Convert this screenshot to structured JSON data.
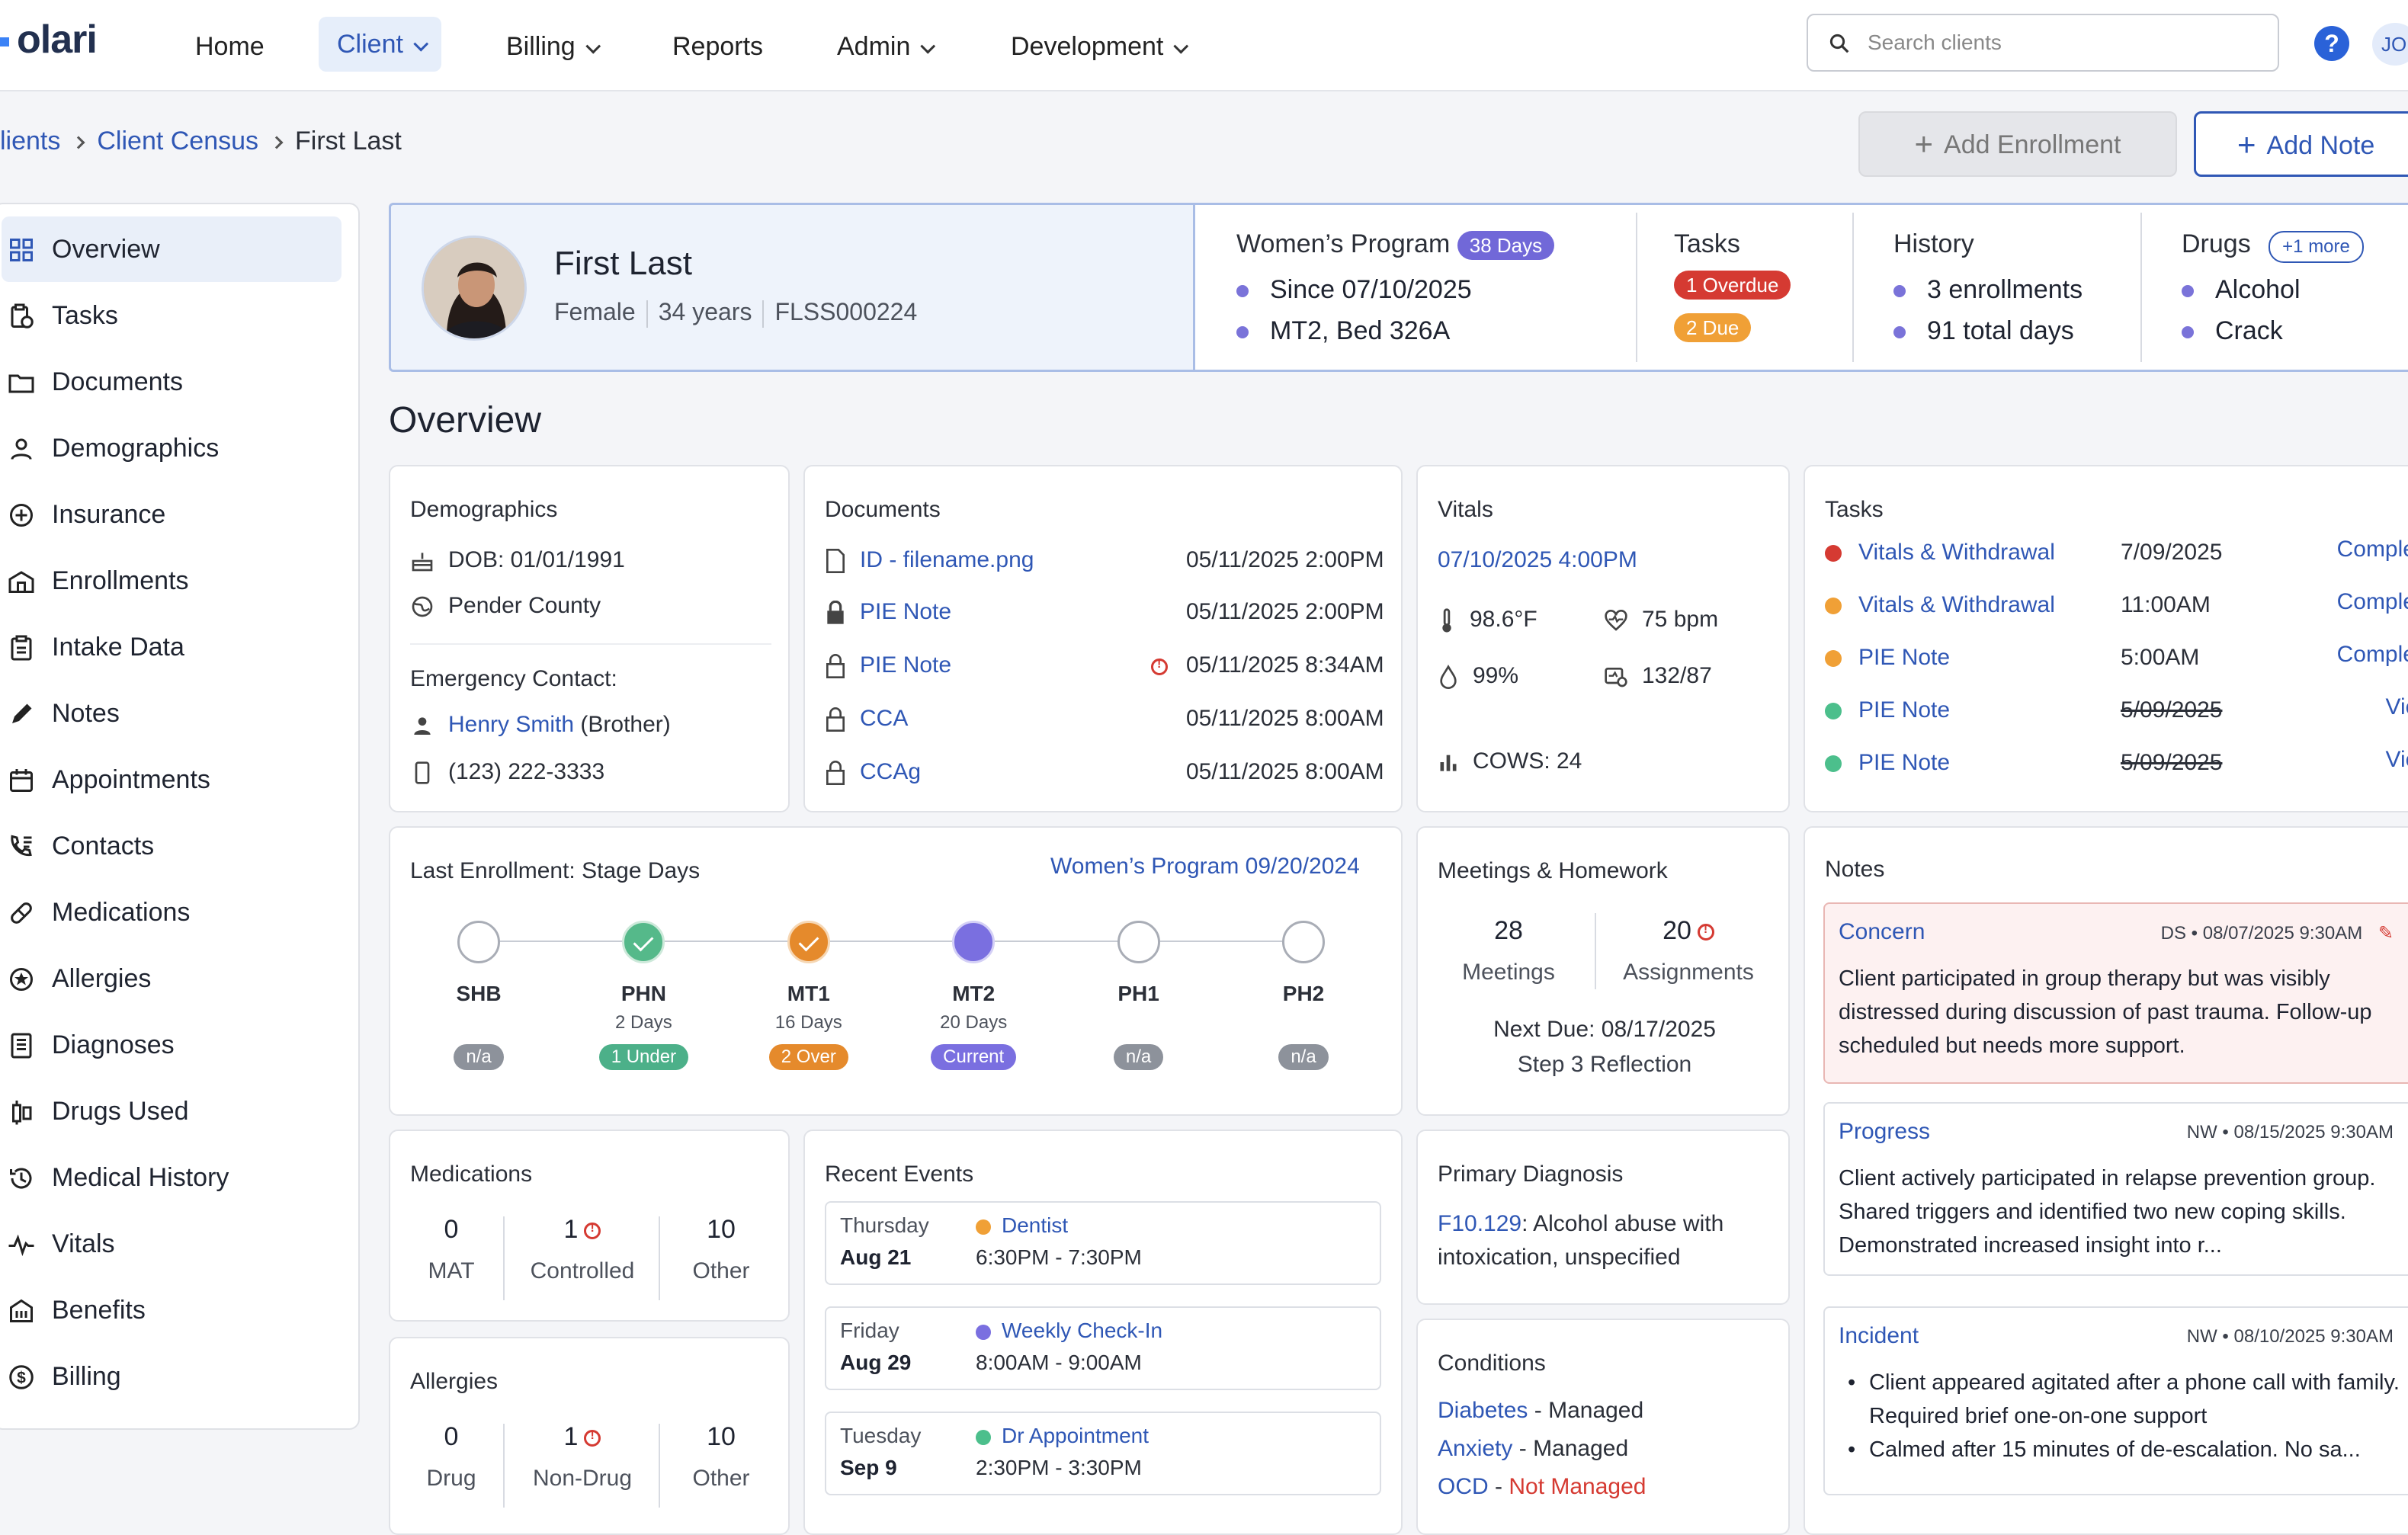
{
  "nav": {
    "logo": "olari",
    "items": [
      {
        "label": "Home"
      },
      {
        "label": "Client"
      },
      {
        "label": "Billing"
      },
      {
        "label": "Reports"
      },
      {
        "label": "Admin"
      },
      {
        "label": "Development"
      }
    ],
    "search_placeholder": "Search clients",
    "help": "?",
    "user_initials": "JO",
    "accent": "#2f57b5"
  },
  "breadcrumb": {
    "items": [
      "lients",
      "Client Census",
      "First Last"
    ]
  },
  "actions": {
    "add_enrollment": "Add Enrollment",
    "add_note": "Add Note"
  },
  "sidebar": {
    "items": [
      {
        "label": "Overview",
        "icon": "grid-icon"
      },
      {
        "label": "Tasks",
        "icon": "clipboard-clock-icon"
      },
      {
        "label": "Documents",
        "icon": "folder-icon"
      },
      {
        "label": "Demographics",
        "icon": "person-icon"
      },
      {
        "label": "Insurance",
        "icon": "plus-circle-icon"
      },
      {
        "label": "Enrollments",
        "icon": "building-icon"
      },
      {
        "label": "Intake Data",
        "icon": "clipboard-icon"
      },
      {
        "label": "Notes",
        "icon": "pencil-icon"
      },
      {
        "label": "Appointments",
        "icon": "calendar-icon"
      },
      {
        "label": "Contacts",
        "icon": "phone-list-icon"
      },
      {
        "label": "Medications",
        "icon": "pill-icon"
      },
      {
        "label": "Allergies",
        "icon": "allergy-icon"
      },
      {
        "label": "Diagnoses",
        "icon": "report-icon"
      },
      {
        "label": "Drugs Used",
        "icon": "syringe-icon"
      },
      {
        "label": "Medical History",
        "icon": "history-icon"
      },
      {
        "label": "Vitals",
        "icon": "pulse-icon"
      },
      {
        "label": "Benefits",
        "icon": "bank-icon"
      },
      {
        "label": "Billing",
        "icon": "dollar-icon"
      }
    ]
  },
  "client": {
    "name": "First Last",
    "gender": "Female",
    "age": "34 years",
    "id": "FLSS000224",
    "program": {
      "title": "Women’s Program",
      "days": "38 Days",
      "since": "Since 07/10/2025",
      "bed": "MT2, Bed 326A"
    },
    "tasks": {
      "title": "Tasks",
      "overdue": "1 Overdue",
      "due": "2 Due"
    },
    "history": {
      "title": "History",
      "enrollments": "3 enrollments",
      "days": "91 total days"
    },
    "drugs": {
      "title": "Drugs",
      "more": "+1 more",
      "items": [
        "Alcohol",
        "Crack"
      ]
    }
  },
  "overview_title": "Overview",
  "demographics": {
    "title": "Demographics",
    "dob": "DOB: 01/01/1991",
    "county": "Pender County",
    "emergency_label": "Emergency Contact:",
    "contact_name": "Henry Smith",
    "contact_rel": "(Brother)",
    "phone": "(123) 222-3333"
  },
  "documents": {
    "title": "Documents",
    "rows": [
      {
        "name": "ID - filename.png",
        "date": "05/11/2025 2:00PM"
      },
      {
        "name": "PIE Note",
        "date": "05/11/2025 2:00PM"
      },
      {
        "name": "PIE Note",
        "date": "05/11/2025 8:34AM"
      },
      {
        "name": "CCA",
        "date": "05/11/2025 8:00AM"
      },
      {
        "name": "CCAg",
        "date": "05/11/2025 8:00AM"
      }
    ]
  },
  "vitals": {
    "title": "Vitals",
    "date": "07/10/2025 4:00PM",
    "temp": "98.6°F",
    "pulse": "75 bpm",
    "spo2": "99%",
    "bp": "132/87",
    "cows": "COWS: 24"
  },
  "tasks": {
    "title": "Tasks",
    "rows": [
      {
        "name": "Vitals & Withdrawal",
        "when": "7/09/2025",
        "action": "Complete",
        "color": "#d53a32"
      },
      {
        "name": "Vitals & Withdrawal",
        "when": "11:00AM",
        "action": "Complete",
        "color": "#f0a036"
      },
      {
        "name": "PIE Note",
        "when": "5:00AM",
        "action": "Complete",
        "color": "#f0a036"
      },
      {
        "name": "PIE Note",
        "when": "5/09/2025",
        "action": "View",
        "color": "#4cbf8c"
      },
      {
        "name": "PIE Note",
        "when": "5/09/2025",
        "action": "View",
        "color": "#4cbf8c"
      }
    ]
  },
  "stages": {
    "title": "Last Enrollment: Stage Days",
    "program_link": "Women’s Program 09/20/2024",
    "items": [
      {
        "name": "SHB",
        "days": "",
        "status": "n/a",
        "state": "empty"
      },
      {
        "name": "PHN",
        "days": "2 Days",
        "status": "1 Under",
        "state": "green"
      },
      {
        "name": "MT1",
        "days": "16 Days",
        "status": "2 Over",
        "state": "orange"
      },
      {
        "name": "MT2",
        "days": "20 Days",
        "status": "Current",
        "state": "purple"
      },
      {
        "name": "PH1",
        "days": "",
        "status": "n/a",
        "state": "empty"
      },
      {
        "name": "PH2",
        "days": "",
        "status": "n/a",
        "state": "empty"
      }
    ]
  },
  "meetings": {
    "title": "Meetings & Homework",
    "meetings_num": "28",
    "meetings_lbl": "Meetings",
    "assign_num": "20",
    "assign_lbl": "Assignments",
    "next_due": "Next Due: 08/17/2025",
    "step": "Step 3 Reflection"
  },
  "notes": {
    "title": "Notes",
    "items": [
      {
        "type": "Concern",
        "author": "DS",
        "date": "08/07/2025 9:30AM",
        "body": "Client participated in group therapy but was visibly distressed during discussion of past trauma. Follow-up scheduled but needs more support."
      },
      {
        "type": "Progress",
        "author": "NW",
        "date": "08/15/2025 9:30AM",
        "body": "Client actively participated in relapse prevention group. Shared triggers and identified two new coping skills. Demonstrated increased insight into r..."
      },
      {
        "type": "Incident",
        "author": "NW",
        "date": "08/10/2025 9:30AM",
        "bullets": [
          "Client appeared agitated after a phone call with family. Required brief one-on-one support",
          "Calmed after 15 minutes of de-escalation. No sa..."
        ]
      }
    ]
  },
  "medications": {
    "title": "Medications",
    "stats": [
      {
        "num": "0",
        "lbl": "MAT"
      },
      {
        "num": "1",
        "lbl": "Controlled"
      },
      {
        "num": "10",
        "lbl": "Other"
      }
    ]
  },
  "allergies": {
    "title": "Allergies",
    "stats": [
      {
        "num": "0",
        "lbl": "Drug"
      },
      {
        "num": "1",
        "lbl": "Non-Drug"
      },
      {
        "num": "10",
        "lbl": "Other"
      }
    ]
  },
  "events": {
    "title": "Recent Events",
    "items": [
      {
        "day": "Thursday",
        "date": "Aug 21",
        "name": "Dentist",
        "time": "6:30PM - 7:30PM",
        "color": "#f0a036"
      },
      {
        "day": "Friday",
        "date": "Aug 29",
        "name": "Weekly Check-In",
        "time": "8:00AM - 9:00AM",
        "color": "#7a6fe0"
      },
      {
        "day": "Tuesday",
        "date": "Sep 9",
        "name": "Dr Appointment",
        "time": "2:30PM - 3:30PM",
        "color": "#4cbf8c"
      }
    ]
  },
  "diagnosis": {
    "title": "Primary Diagnosis",
    "code": "F10.129",
    "desc": ": Alcohol abuse with intoxication, unspecified"
  },
  "conditions": {
    "title": "Conditions",
    "items": [
      {
        "name": "Diabetes",
        "status": "Managed"
      },
      {
        "name": "Anxiety",
        "status": "Managed"
      },
      {
        "name": "OCD",
        "status": "Not Managed"
      }
    ]
  }
}
